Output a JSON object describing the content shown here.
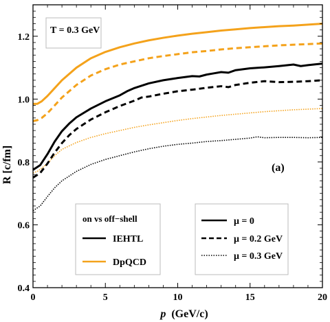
{
  "chart_data": {
    "type": "line",
    "xlabel_var": "p",
    "xlabel_unit": "(GeV/c)",
    "ylabel": "R [c/fm]",
    "xlim": [
      0,
      20
    ],
    "ylim": [
      0.4,
      1.3
    ],
    "xticks": [
      0,
      5,
      10,
      15,
      20
    ],
    "yticks": [
      0.4,
      0.6,
      0.8,
      1.0,
      1.2
    ],
    "xtick_labels": [
      "0",
      "5",
      "10",
      "15",
      "20"
    ],
    "ytick_labels": [
      "0.4",
      "0.6",
      "0.8",
      "1.0",
      "1.2"
    ],
    "annotation_temp": "T = 0.3 GeV",
    "panel_label": "(a)",
    "legend_models": {
      "title": "on vs off−shell",
      "items": [
        {
          "label": "IEHTL",
          "color": "#000000"
        },
        {
          "label": "DpQCD",
          "color": "#f4a21b"
        }
      ]
    },
    "legend_mu": {
      "items": [
        {
          "label": "μ = 0",
          "dash": "solid"
        },
        {
          "label": "μ = 0.2 GeV",
          "dash": "dashed"
        },
        {
          "label": "μ = 0.3 GeV",
          "dash": "dotted"
        }
      ]
    },
    "series": [
      {
        "model": "DpQCD",
        "mu": 0,
        "color": "#f4a21b",
        "dash": "solid",
        "x": [
          0,
          0.3,
          0.6,
          1,
          1.5,
          2,
          3,
          4,
          5,
          6,
          7,
          8,
          9,
          10,
          11,
          12,
          13,
          14,
          15,
          16,
          17,
          18,
          19,
          20
        ],
        "y": [
          0.985,
          0.985,
          0.993,
          1.01,
          1.035,
          1.06,
          1.1,
          1.13,
          1.15,
          1.165,
          1.177,
          1.187,
          1.195,
          1.202,
          1.208,
          1.213,
          1.218,
          1.222,
          1.226,
          1.229,
          1.232,
          1.234,
          1.237,
          1.24
        ]
      },
      {
        "model": "DpQCD",
        "mu": 0.2,
        "color": "#f4a21b",
        "dash": "dashed",
        "x": [
          0,
          0.3,
          0.6,
          1,
          1.5,
          2,
          3,
          4,
          5,
          6,
          7,
          8,
          9,
          10,
          11,
          12,
          13,
          14,
          15,
          16,
          17,
          18,
          19,
          20
        ],
        "y": [
          0.93,
          0.933,
          0.94,
          0.955,
          0.98,
          1.005,
          1.045,
          1.075,
          1.095,
          1.11,
          1.12,
          1.13,
          1.137,
          1.143,
          1.149,
          1.153,
          1.158,
          1.162,
          1.165,
          1.168,
          1.171,
          1.173,
          1.175,
          1.177
        ]
      },
      {
        "model": "DpQCD",
        "mu": 0.3,
        "color": "#f4a21b",
        "dash": "dotted",
        "x": [
          0,
          0.3,
          0.6,
          1,
          1.5,
          2,
          3,
          4,
          5,
          6,
          7,
          8,
          9,
          10,
          11,
          12,
          13,
          14,
          15,
          16,
          17,
          18,
          19,
          20
        ],
        "y": [
          0.765,
          0.77,
          0.78,
          0.795,
          0.82,
          0.84,
          0.862,
          0.878,
          0.89,
          0.9,
          0.91,
          0.918,
          0.925,
          0.932,
          0.938,
          0.943,
          0.948,
          0.952,
          0.956,
          0.96,
          0.963,
          0.966,
          0.968,
          0.97
        ]
      },
      {
        "model": "IEHTL",
        "mu": 0,
        "color": "#000000",
        "dash": "solid",
        "x": [
          0,
          0.5,
          1,
          1.5,
          2,
          2.5,
          3,
          4,
          5,
          6,
          6.5,
          7,
          8,
          9,
          10,
          10.5,
          11,
          11.5,
          12,
          12.5,
          13,
          13.5,
          14,
          15,
          16,
          17,
          18,
          18.5,
          19,
          20
        ],
        "y": [
          0.775,
          0.79,
          0.825,
          0.865,
          0.898,
          0.922,
          0.942,
          0.97,
          0.993,
          1.012,
          1.025,
          1.035,
          1.05,
          1.06,
          1.067,
          1.07,
          1.073,
          1.072,
          1.078,
          1.082,
          1.086,
          1.084,
          1.092,
          1.098,
          1.101,
          1.105,
          1.11,
          1.105,
          1.108,
          1.113
        ]
      },
      {
        "model": "IEHTL",
        "mu": 0.2,
        "color": "#000000",
        "dash": "dashed",
        "x": [
          0,
          0.5,
          1,
          1.5,
          2,
          2.5,
          3,
          4,
          5,
          6,
          7,
          7.5,
          8,
          9,
          10,
          11,
          12,
          13,
          13.5,
          14,
          15,
          16,
          17,
          18,
          19,
          20
        ],
        "y": [
          0.75,
          0.765,
          0.795,
          0.83,
          0.86,
          0.885,
          0.905,
          0.935,
          0.958,
          0.978,
          0.995,
          1.005,
          1.008,
          1.017,
          1.025,
          1.03,
          1.036,
          1.041,
          1.038,
          1.045,
          1.052,
          1.057,
          1.054,
          1.055,
          1.057,
          1.06
        ]
      },
      {
        "model": "IEHTL",
        "mu": 0.3,
        "color": "#000000",
        "dash": "dotted",
        "x": [
          0,
          0.5,
          1,
          1.5,
          2,
          3,
          4,
          5,
          6,
          7,
          8,
          9,
          10,
          11,
          12,
          13,
          14,
          15,
          15.5,
          16,
          17,
          18,
          19,
          20
        ],
        "y": [
          0.645,
          0.66,
          0.69,
          0.718,
          0.74,
          0.77,
          0.792,
          0.808,
          0.82,
          0.832,
          0.842,
          0.85,
          0.856,
          0.86,
          0.865,
          0.868,
          0.872,
          0.876,
          0.88,
          0.877,
          0.878,
          0.878,
          0.877,
          0.878
        ]
      }
    ]
  }
}
